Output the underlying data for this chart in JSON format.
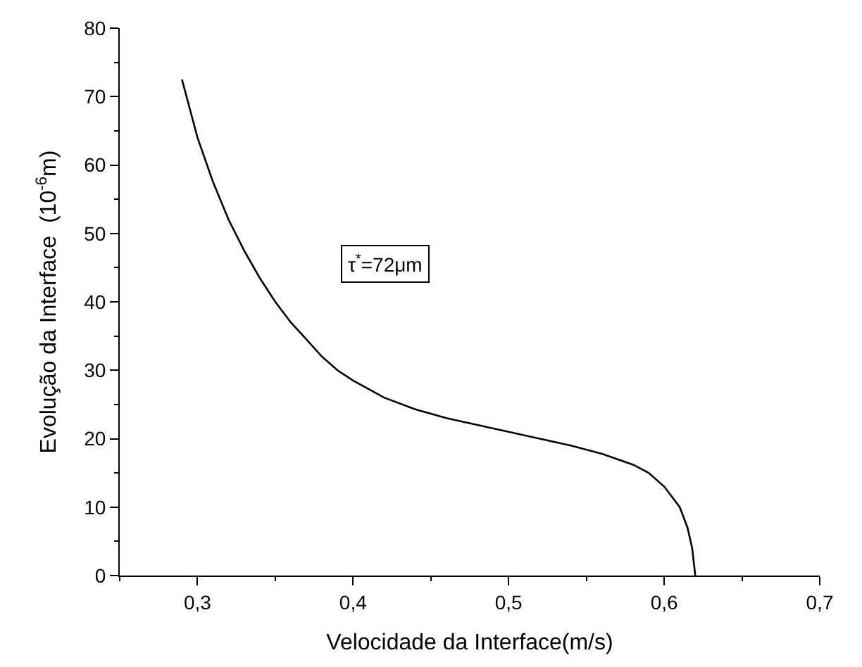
{
  "chart_data": {
    "type": "line",
    "xlabel": "Velocidade da Interface(m/s)",
    "ylabel": "Evolução da Interface  (10$^{-6}$m)",
    "annotations": [
      "τ$^{*}$=72μm"
    ],
    "x": [
      0.29,
      0.3,
      0.31,
      0.32,
      0.33,
      0.34,
      0.35,
      0.36,
      0.37,
      0.38,
      0.39,
      0.4,
      0.42,
      0.44,
      0.46,
      0.48,
      0.5,
      0.52,
      0.54,
      0.56,
      0.58,
      0.59,
      0.6,
      0.61,
      0.615,
      0.618,
      0.619,
      0.62
    ],
    "series": [
      {
        "color": "#000000",
        "values": [
          72.5,
          64,
          57.5,
          52,
          47.5,
          43.5,
          40,
          37,
          34.5,
          32,
          30,
          28.5,
          26,
          24.3,
          23,
          22,
          21,
          20,
          19,
          17.8,
          16.2,
          15,
          13,
          10,
          7,
          4,
          2,
          0
        ]
      }
    ],
    "xlim": [
      0.25,
      0.7
    ],
    "ylim": [
      0,
      80
    ],
    "xticks": [
      {
        "value": 0.3,
        "label": "0,3"
      },
      {
        "value": 0.4,
        "label": "0,4"
      },
      {
        "value": 0.5,
        "label": "0,5"
      },
      {
        "value": 0.6,
        "label": "0,6"
      },
      {
        "value": 0.7,
        "label": "0,7"
      }
    ],
    "yticks": [
      0,
      10,
      20,
      30,
      40,
      50,
      60,
      70,
      80
    ],
    "legend": false,
    "marker": "none",
    "line_style": "solid"
  }
}
